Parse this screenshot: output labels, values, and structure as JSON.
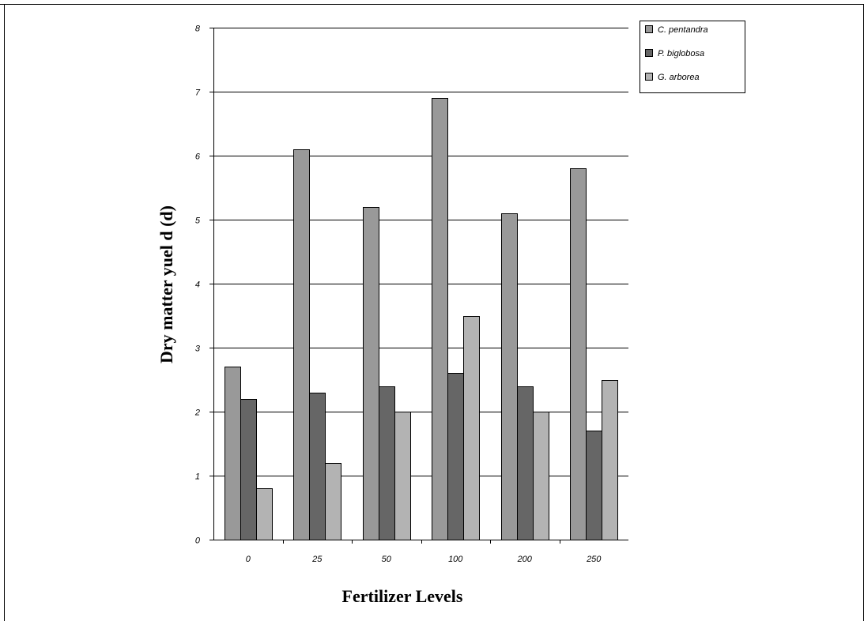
{
  "chart_data": {
    "type": "bar",
    "title": "",
    "xlabel": "Fertilizer Levels",
    "ylabel": "Dry matter yuel d (d)",
    "categories": [
      "0",
      "25",
      "50",
      "100",
      "200",
      "250"
    ],
    "series": [
      {
        "name": "C. pentandra",
        "color": "#999999",
        "values": [
          2.7,
          6.1,
          5.2,
          6.9,
          5.1,
          5.8
        ]
      },
      {
        "name": "P. biglobosa",
        "color": "#666666",
        "values": [
          2.2,
          2.3,
          2.4,
          2.6,
          2.4,
          1.7
        ]
      },
      {
        "name": "G. arborea",
        "color": "#b3b3b3",
        "values": [
          0.8,
          1.2,
          2.0,
          3.5,
          2.0,
          2.5
        ]
      }
    ],
    "y_ticks": [
      "0",
      "1",
      "2",
      "3",
      "4",
      "5",
      "6",
      "7",
      "8"
    ],
    "ylim": [
      0,
      8
    ],
    "grid": true,
    "legend_position": "top-right"
  }
}
